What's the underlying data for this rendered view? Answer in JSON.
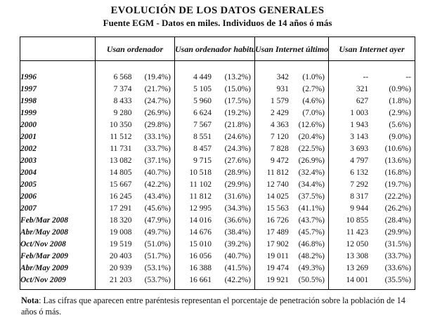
{
  "page": {
    "title": "EVOLUCIÓN DE LOS DATOS GENERALES",
    "subtitle": "Fuente EGM - Datos en miles. Individuos de 14 años ó más"
  },
  "colors": {
    "text": "#111111",
    "border": "#000000",
    "background": "#ffffff"
  },
  "table": {
    "column_headers": [
      "Usan ordenador",
      "Usan ordenador habitualmente",
      "Usan Internet último mes",
      "Usan Internet ayer"
    ],
    "rows": [
      {
        "label": "1996",
        "cells": [
          [
            "6 568",
            "(19.4%)"
          ],
          [
            "4 449",
            "(13.2%)"
          ],
          [
            "342",
            "(1.0%)"
          ],
          [
            "--",
            "--"
          ]
        ]
      },
      {
        "label": "1997",
        "cells": [
          [
            "7 374",
            "(21.7%)"
          ],
          [
            "5 105",
            "(15.0%)"
          ],
          [
            "931",
            "(2.7%)"
          ],
          [
            "321",
            "(0.9%)"
          ]
        ]
      },
      {
        "label": "1998",
        "cells": [
          [
            "8 433",
            "(24.7%)"
          ],
          [
            "5 960",
            "(17.5%)"
          ],
          [
            "1 579",
            "(4.6%)"
          ],
          [
            "627",
            "(1.8%)"
          ]
        ]
      },
      {
        "label": "1999",
        "cells": [
          [
            "9 280",
            "(26.9%)"
          ],
          [
            "6 624",
            "(19.2%)"
          ],
          [
            "2 429",
            "(7.0%)"
          ],
          [
            "1 003",
            "(2.9%)"
          ]
        ]
      },
      {
        "label": "2000",
        "cells": [
          [
            "10 350",
            "(29.8%)"
          ],
          [
            "7 567",
            "(21.8%)"
          ],
          [
            "4 363",
            "(12.6%)"
          ],
          [
            "1 943",
            "(5.6%)"
          ]
        ]
      },
      {
        "label": "2001",
        "cells": [
          [
            "11 512",
            "(33.1%)"
          ],
          [
            "8 551",
            "(24.6%)"
          ],
          [
            "7 120",
            "(20.4%)"
          ],
          [
            "3 143",
            "(9.0%)"
          ]
        ]
      },
      {
        "label": "2002",
        "cells": [
          [
            "11 731",
            "(33.7%)"
          ],
          [
            "8 457",
            "(24.3%)"
          ],
          [
            "7 828",
            "(22.5%)"
          ],
          [
            "3 693",
            "(10.6%)"
          ]
        ]
      },
      {
        "label": "2003",
        "cells": [
          [
            "13 082",
            "(37.1%)"
          ],
          [
            "9 715",
            "(27.6%)"
          ],
          [
            "9 472",
            "(26.9%)"
          ],
          [
            "4 797",
            "(13.6%)"
          ]
        ]
      },
      {
        "label": "2004",
        "cells": [
          [
            "14 805",
            "(40.7%)"
          ],
          [
            "10 518",
            "(28.9%)"
          ],
          [
            "11 812",
            "(32.4%)"
          ],
          [
            "6 132",
            "(16.8%)"
          ]
        ]
      },
      {
        "label": "2005",
        "cells": [
          [
            "15 667",
            "(42.2%)"
          ],
          [
            "11 102",
            "(29.9%)"
          ],
          [
            "12 740",
            "(34.4%)"
          ],
          [
            "7 292",
            "(19.7%)"
          ]
        ]
      },
      {
        "label": "2006",
        "cells": [
          [
            "16 245",
            "(43.4%)"
          ],
          [
            "11 812",
            "(31.6%)"
          ],
          [
            "14 025",
            "(37.5%)"
          ],
          [
            "8 317",
            "(22.2%)"
          ]
        ]
      },
      {
        "label": "2007",
        "cells": [
          [
            "17 291",
            "(45.6%)"
          ],
          [
            "12 995",
            "(34.3%)"
          ],
          [
            "15 563",
            "(41.1%)"
          ],
          [
            "9 944",
            "(26.2%)"
          ]
        ]
      },
      {
        "label": "Feb/Mar 2008",
        "cells": [
          [
            "18 320",
            "(47.9%)"
          ],
          [
            "14 016",
            "(36.6%)"
          ],
          [
            "16 726",
            "(43.7%)"
          ],
          [
            "10 855",
            "(28.4%)"
          ]
        ]
      },
      {
        "label": "Abr/May 2008",
        "cells": [
          [
            "19 008",
            "(49.7%)"
          ],
          [
            "14 676",
            "(38.4%)"
          ],
          [
            "17 489",
            "(45.7%)"
          ],
          [
            "11 423",
            "(29.9%)"
          ]
        ]
      },
      {
        "label": "Oct/Nov 2008",
        "cells": [
          [
            "19 519",
            "(51.0%)"
          ],
          [
            "15 010",
            "(39.2%)"
          ],
          [
            "17 902",
            "(46.8%)"
          ],
          [
            "12 050",
            "(31.5%)"
          ]
        ]
      },
      {
        "label": "Feb/Mar 2009",
        "cells": [
          [
            "20 403",
            "(51.7%)"
          ],
          [
            "16 056",
            "(40.7%)"
          ],
          [
            "19 011",
            "(48.2%)"
          ],
          [
            "13 308",
            "(33.7%)"
          ]
        ]
      },
      {
        "label": "Abr/May 2009",
        "cells": [
          [
            "20 939",
            "(53.1%)"
          ],
          [
            "16 388",
            "(41.5%)"
          ],
          [
            "19 474",
            "(49.3%)"
          ],
          [
            "13 269",
            "(33.6%)"
          ]
        ]
      },
      {
        "label": "Oct/Nov 2009",
        "cells": [
          [
            "21 203",
            "(53.7%)"
          ],
          [
            "16 661",
            "(42.2%)"
          ],
          [
            "19 921",
            "(50.5%)"
          ],
          [
            "14 001",
            "(35.5%)"
          ]
        ]
      }
    ]
  },
  "note": {
    "label": "Nota",
    "text": ": Las cifras que aparecen entre paréntesis representan el porcentaje de penetración sobre la población de 14 años ó más."
  }
}
